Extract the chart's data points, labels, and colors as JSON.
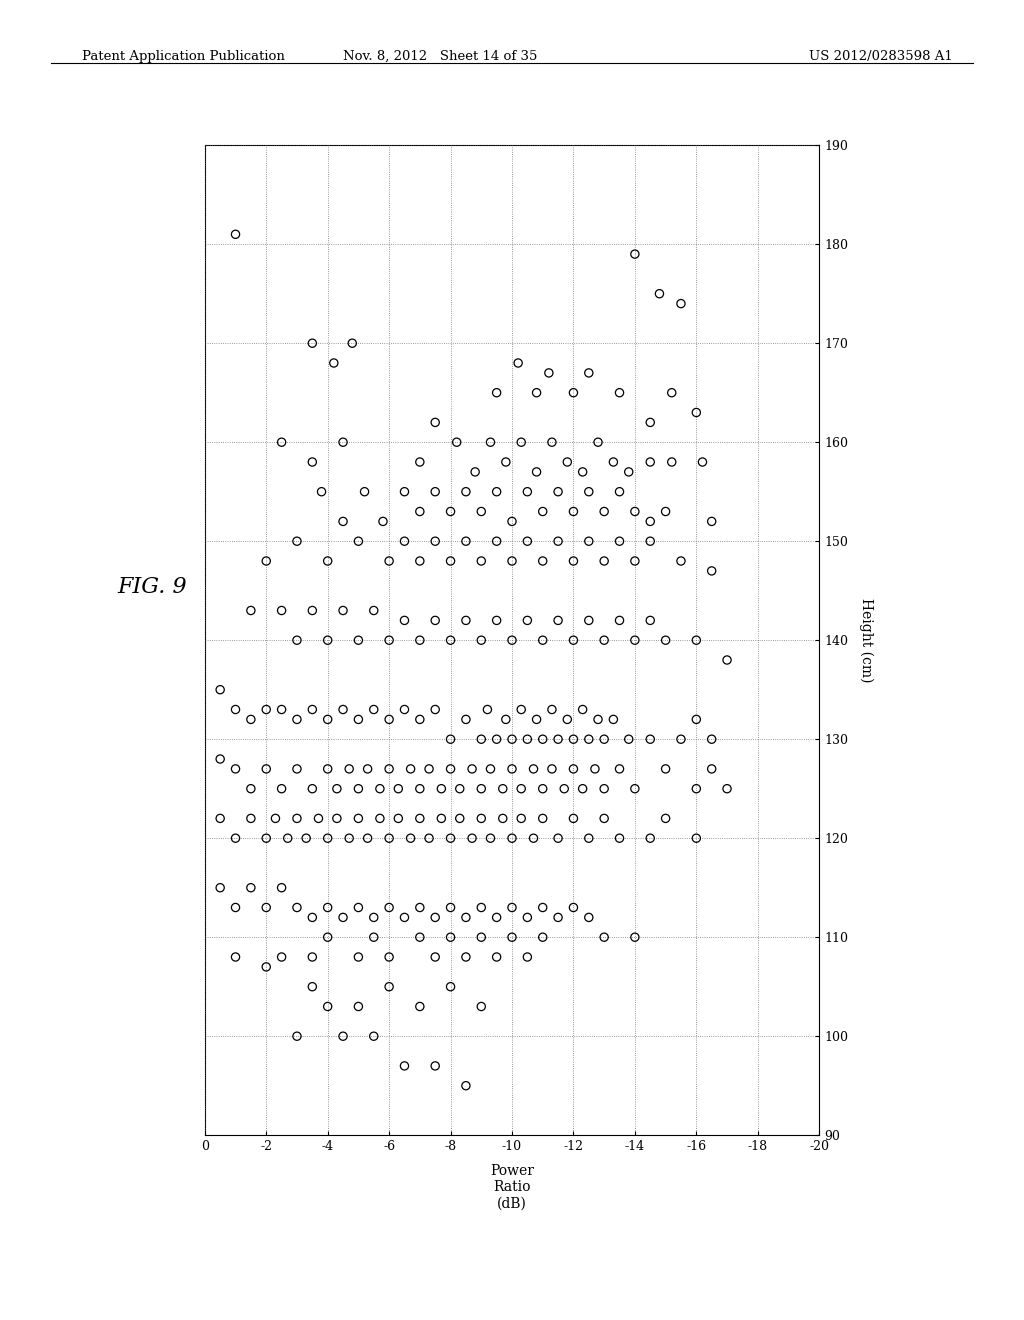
{
  "xlabel": "Power\nRatio\n(dB)",
  "ylabel": "Height (cm)",
  "xlim": [
    0,
    -20
  ],
  "ylim": [
    90,
    190
  ],
  "xticks": [
    0,
    -2,
    -4,
    -6,
    -8,
    -10,
    -12,
    -14,
    -16,
    -18,
    -20
  ],
  "yticks": [
    90,
    100,
    110,
    120,
    130,
    140,
    150,
    160,
    170,
    180,
    190
  ],
  "scatter_points": [
    [
      -1.0,
      181
    ],
    [
      -14.0,
      179
    ],
    [
      -14.8,
      175
    ],
    [
      -15.5,
      174
    ],
    [
      -3.5,
      170
    ],
    [
      -4.8,
      170
    ],
    [
      -4.2,
      168
    ],
    [
      -9.5,
      165
    ],
    [
      -10.2,
      168
    ],
    [
      -10.8,
      165
    ],
    [
      -11.2,
      167
    ],
    [
      -12.0,
      165
    ],
    [
      -12.5,
      167
    ],
    [
      -13.5,
      165
    ],
    [
      -14.5,
      162
    ],
    [
      -15.2,
      165
    ],
    [
      -16.0,
      163
    ],
    [
      -2.5,
      160
    ],
    [
      -3.5,
      158
    ],
    [
      -4.5,
      160
    ],
    [
      -7.0,
      158
    ],
    [
      -7.5,
      162
    ],
    [
      -8.2,
      160
    ],
    [
      -8.8,
      157
    ],
    [
      -9.3,
      160
    ],
    [
      -9.8,
      158
    ],
    [
      -10.3,
      160
    ],
    [
      -10.8,
      157
    ],
    [
      -11.3,
      160
    ],
    [
      -11.8,
      158
    ],
    [
      -12.3,
      157
    ],
    [
      -12.8,
      160
    ],
    [
      -13.3,
      158
    ],
    [
      -13.8,
      157
    ],
    [
      -14.5,
      158
    ],
    [
      -15.2,
      158
    ],
    [
      -16.2,
      158
    ],
    [
      -3.8,
      155
    ],
    [
      -4.5,
      152
    ],
    [
      -5.2,
      155
    ],
    [
      -5.8,
      152
    ],
    [
      -6.5,
      155
    ],
    [
      -7.0,
      153
    ],
    [
      -7.5,
      155
    ],
    [
      -8.0,
      153
    ],
    [
      -8.5,
      155
    ],
    [
      -9.0,
      153
    ],
    [
      -9.5,
      155
    ],
    [
      -10.0,
      152
    ],
    [
      -10.5,
      155
    ],
    [
      -11.0,
      153
    ],
    [
      -11.5,
      155
    ],
    [
      -12.0,
      153
    ],
    [
      -12.5,
      155
    ],
    [
      -13.0,
      153
    ],
    [
      -13.5,
      155
    ],
    [
      -14.0,
      153
    ],
    [
      -14.5,
      152
    ],
    [
      -15.0,
      153
    ],
    [
      -16.5,
      152
    ],
    [
      -2.0,
      148
    ],
    [
      -3.0,
      150
    ],
    [
      -4.0,
      148
    ],
    [
      -5.0,
      150
    ],
    [
      -6.0,
      148
    ],
    [
      -6.5,
      150
    ],
    [
      -7.0,
      148
    ],
    [
      -7.5,
      150
    ],
    [
      -8.0,
      148
    ],
    [
      -8.5,
      150
    ],
    [
      -9.0,
      148
    ],
    [
      -9.5,
      150
    ],
    [
      -10.0,
      148
    ],
    [
      -10.5,
      150
    ],
    [
      -11.0,
      148
    ],
    [
      -11.5,
      150
    ],
    [
      -12.0,
      148
    ],
    [
      -12.5,
      150
    ],
    [
      -13.0,
      148
    ],
    [
      -13.5,
      150
    ],
    [
      -14.0,
      148
    ],
    [
      -14.5,
      150
    ],
    [
      -15.5,
      148
    ],
    [
      -16.5,
      147
    ],
    [
      -1.5,
      143
    ],
    [
      -2.5,
      143
    ],
    [
      -3.0,
      140
    ],
    [
      -3.5,
      143
    ],
    [
      -4.0,
      140
    ],
    [
      -4.5,
      143
    ],
    [
      -5.0,
      140
    ],
    [
      -5.5,
      143
    ],
    [
      -6.0,
      140
    ],
    [
      -6.5,
      142
    ],
    [
      -7.0,
      140
    ],
    [
      -7.5,
      142
    ],
    [
      -8.0,
      140
    ],
    [
      -8.5,
      142
    ],
    [
      -9.0,
      140
    ],
    [
      -9.5,
      142
    ],
    [
      -10.0,
      140
    ],
    [
      -10.5,
      142
    ],
    [
      -11.0,
      140
    ],
    [
      -11.5,
      142
    ],
    [
      -12.0,
      140
    ],
    [
      -12.5,
      142
    ],
    [
      -13.0,
      140
    ],
    [
      -13.5,
      142
    ],
    [
      -14.0,
      140
    ],
    [
      -14.5,
      142
    ],
    [
      -15.0,
      140
    ],
    [
      -16.0,
      140
    ],
    [
      -17.0,
      138
    ],
    [
      -0.5,
      135
    ],
    [
      -1.0,
      133
    ],
    [
      -1.5,
      132
    ],
    [
      -2.0,
      133
    ],
    [
      -2.5,
      133
    ],
    [
      -3.0,
      132
    ],
    [
      -3.5,
      133
    ],
    [
      -4.0,
      132
    ],
    [
      -4.5,
      133
    ],
    [
      -5.0,
      132
    ],
    [
      -5.5,
      133
    ],
    [
      -6.0,
      132
    ],
    [
      -6.5,
      133
    ],
    [
      -7.0,
      132
    ],
    [
      -7.5,
      133
    ],
    [
      -8.0,
      130
    ],
    [
      -8.5,
      132
    ],
    [
      -9.0,
      130
    ],
    [
      -9.2,
      133
    ],
    [
      -9.5,
      130
    ],
    [
      -9.8,
      132
    ],
    [
      -10.0,
      130
    ],
    [
      -10.3,
      133
    ],
    [
      -10.5,
      130
    ],
    [
      -10.8,
      132
    ],
    [
      -11.0,
      130
    ],
    [
      -11.3,
      133
    ],
    [
      -11.5,
      130
    ],
    [
      -11.8,
      132
    ],
    [
      -12.0,
      130
    ],
    [
      -12.3,
      133
    ],
    [
      -12.5,
      130
    ],
    [
      -12.8,
      132
    ],
    [
      -13.0,
      130
    ],
    [
      -13.3,
      132
    ],
    [
      -13.8,
      130
    ],
    [
      -14.5,
      130
    ],
    [
      -15.5,
      130
    ],
    [
      -16.0,
      132
    ],
    [
      -16.5,
      130
    ],
    [
      -0.5,
      128
    ],
    [
      -1.0,
      127
    ],
    [
      -1.5,
      125
    ],
    [
      -2.0,
      127
    ],
    [
      -2.5,
      125
    ],
    [
      -3.0,
      127
    ],
    [
      -3.5,
      125
    ],
    [
      -4.0,
      127
    ],
    [
      -4.3,
      125
    ],
    [
      -4.7,
      127
    ],
    [
      -5.0,
      125
    ],
    [
      -5.3,
      127
    ],
    [
      -5.7,
      125
    ],
    [
      -6.0,
      127
    ],
    [
      -6.3,
      125
    ],
    [
      -6.7,
      127
    ],
    [
      -7.0,
      125
    ],
    [
      -7.3,
      127
    ],
    [
      -7.7,
      125
    ],
    [
      -8.0,
      127
    ],
    [
      -8.3,
      125
    ],
    [
      -8.7,
      127
    ],
    [
      -9.0,
      125
    ],
    [
      -9.3,
      127
    ],
    [
      -9.7,
      125
    ],
    [
      -10.0,
      127
    ],
    [
      -10.3,
      125
    ],
    [
      -10.7,
      127
    ],
    [
      -11.0,
      125
    ],
    [
      -11.3,
      127
    ],
    [
      -11.7,
      125
    ],
    [
      -12.0,
      127
    ],
    [
      -12.3,
      125
    ],
    [
      -12.7,
      127
    ],
    [
      -13.0,
      125
    ],
    [
      -13.5,
      127
    ],
    [
      -14.0,
      125
    ],
    [
      -15.0,
      127
    ],
    [
      -16.0,
      125
    ],
    [
      -16.5,
      127
    ],
    [
      -17.0,
      125
    ],
    [
      -0.5,
      122
    ],
    [
      -1.0,
      120
    ],
    [
      -1.5,
      122
    ],
    [
      -2.0,
      120
    ],
    [
      -2.3,
      122
    ],
    [
      -2.7,
      120
    ],
    [
      -3.0,
      122
    ],
    [
      -3.3,
      120
    ],
    [
      -3.7,
      122
    ],
    [
      -4.0,
      120
    ],
    [
      -4.3,
      122
    ],
    [
      -4.7,
      120
    ],
    [
      -5.0,
      122
    ],
    [
      -5.3,
      120
    ],
    [
      -5.7,
      122
    ],
    [
      -6.0,
      120
    ],
    [
      -6.3,
      122
    ],
    [
      -6.7,
      120
    ],
    [
      -7.0,
      122
    ],
    [
      -7.3,
      120
    ],
    [
      -7.7,
      122
    ],
    [
      -8.0,
      120
    ],
    [
      -8.3,
      122
    ],
    [
      -8.7,
      120
    ],
    [
      -9.0,
      122
    ],
    [
      -9.3,
      120
    ],
    [
      -9.7,
      122
    ],
    [
      -10.0,
      120
    ],
    [
      -10.3,
      122
    ],
    [
      -10.7,
      120
    ],
    [
      -11.0,
      122
    ],
    [
      -11.5,
      120
    ],
    [
      -12.0,
      122
    ],
    [
      -12.5,
      120
    ],
    [
      -13.0,
      122
    ],
    [
      -13.5,
      120
    ],
    [
      -14.5,
      120
    ],
    [
      -15.0,
      122
    ],
    [
      -16.0,
      120
    ],
    [
      -0.5,
      115
    ],
    [
      -1.0,
      113
    ],
    [
      -1.5,
      115
    ],
    [
      -2.0,
      113
    ],
    [
      -2.5,
      115
    ],
    [
      -3.0,
      113
    ],
    [
      -3.5,
      112
    ],
    [
      -4.0,
      113
    ],
    [
      -4.5,
      112
    ],
    [
      -5.0,
      113
    ],
    [
      -5.5,
      112
    ],
    [
      -6.0,
      113
    ],
    [
      -6.5,
      112
    ],
    [
      -7.0,
      113
    ],
    [
      -7.5,
      112
    ],
    [
      -8.0,
      113
    ],
    [
      -8.5,
      112
    ],
    [
      -9.0,
      113
    ],
    [
      -9.5,
      112
    ],
    [
      -10.0,
      113
    ],
    [
      -10.5,
      112
    ],
    [
      -11.0,
      113
    ],
    [
      -11.5,
      112
    ],
    [
      -12.0,
      113
    ],
    [
      -12.5,
      112
    ],
    [
      -13.0,
      110
    ],
    [
      -14.0,
      110
    ],
    [
      -1.0,
      108
    ],
    [
      -2.0,
      107
    ],
    [
      -2.5,
      108
    ],
    [
      -3.5,
      108
    ],
    [
      -4.0,
      110
    ],
    [
      -5.0,
      108
    ],
    [
      -5.5,
      110
    ],
    [
      -6.0,
      108
    ],
    [
      -7.0,
      110
    ],
    [
      -7.5,
      108
    ],
    [
      -8.0,
      110
    ],
    [
      -8.5,
      108
    ],
    [
      -9.0,
      110
    ],
    [
      -9.5,
      108
    ],
    [
      -10.0,
      110
    ],
    [
      -10.5,
      108
    ],
    [
      -11.0,
      110
    ],
    [
      -3.5,
      105
    ],
    [
      -4.0,
      103
    ],
    [
      -5.0,
      103
    ],
    [
      -6.0,
      105
    ],
    [
      -7.0,
      103
    ],
    [
      -8.0,
      105
    ],
    [
      -9.0,
      103
    ],
    [
      -3.0,
      100
    ],
    [
      -4.5,
      100
    ],
    [
      -5.5,
      100
    ],
    [
      -6.5,
      97
    ],
    [
      -7.5,
      97
    ],
    [
      -8.5,
      95
    ]
  ],
  "header_left": "Patent Application Publication",
  "header_center": "Nov. 8, 2012   Sheet 14 of 35",
  "header_right": "US 2012/0283598 A1",
  "fig_label": "FIG. 9"
}
